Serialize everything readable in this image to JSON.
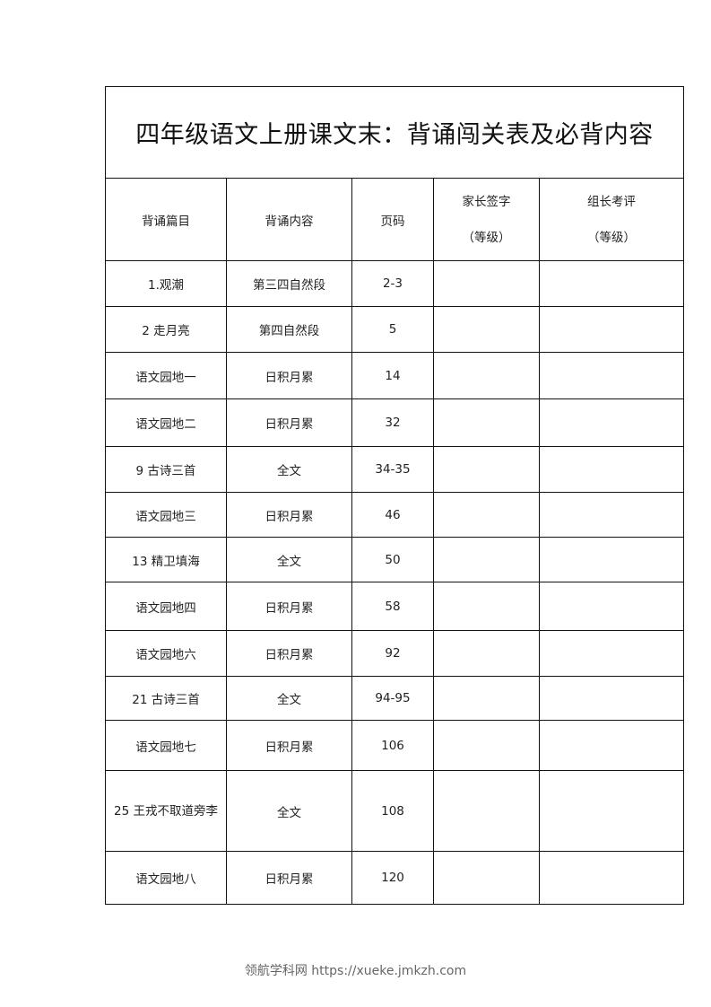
{
  "title": "四年级语文上册课文末：背诵闯关表及必背内容",
  "headers": {
    "piece": "背诵篇目",
    "content": "背诵内容",
    "page": "页码",
    "parent_sign": "家长签字",
    "parent_sign_sub": "（等级）",
    "leader_eval": "组长考评",
    "leader_eval_sub": "（等级）"
  },
  "rows": [
    {
      "piece": "1.观潮",
      "content": "第三四自然段",
      "page": "2-3"
    },
    {
      "piece": "2  走月亮",
      "content": "第四自然段",
      "page": "5"
    },
    {
      "piece": "语文园地一",
      "content": "日积月累",
      "page": "14"
    },
    {
      "piece": "语文园地二",
      "content": "日积月累",
      "page": "32"
    },
    {
      "piece": "9  古诗三首",
      "content": "全文",
      "page": "34-35"
    },
    {
      "piece": "语文园地三",
      "content": "日积月累",
      "page": "46"
    },
    {
      "piece": "13  精卫填海",
      "content": "全文",
      "page": "50"
    },
    {
      "piece": "语文园地四",
      "content": "日积月累",
      "page": "58"
    },
    {
      "piece": "语文园地六",
      "content": "日积月累",
      "page": "92"
    },
    {
      "piece": "21  古诗三首",
      "content": "全文",
      "page": "94-95"
    },
    {
      "piece": "语文园地七",
      "content": "日积月累",
      "page": "106"
    },
    {
      "piece": "25  王戎不取道旁李",
      "content": "全文",
      "page": "108"
    },
    {
      "piece": "语文园地八",
      "content": "日积月累",
      "page": "120"
    }
  ],
  "footer": "领航学科网 https://xueke.jmkzh.com"
}
